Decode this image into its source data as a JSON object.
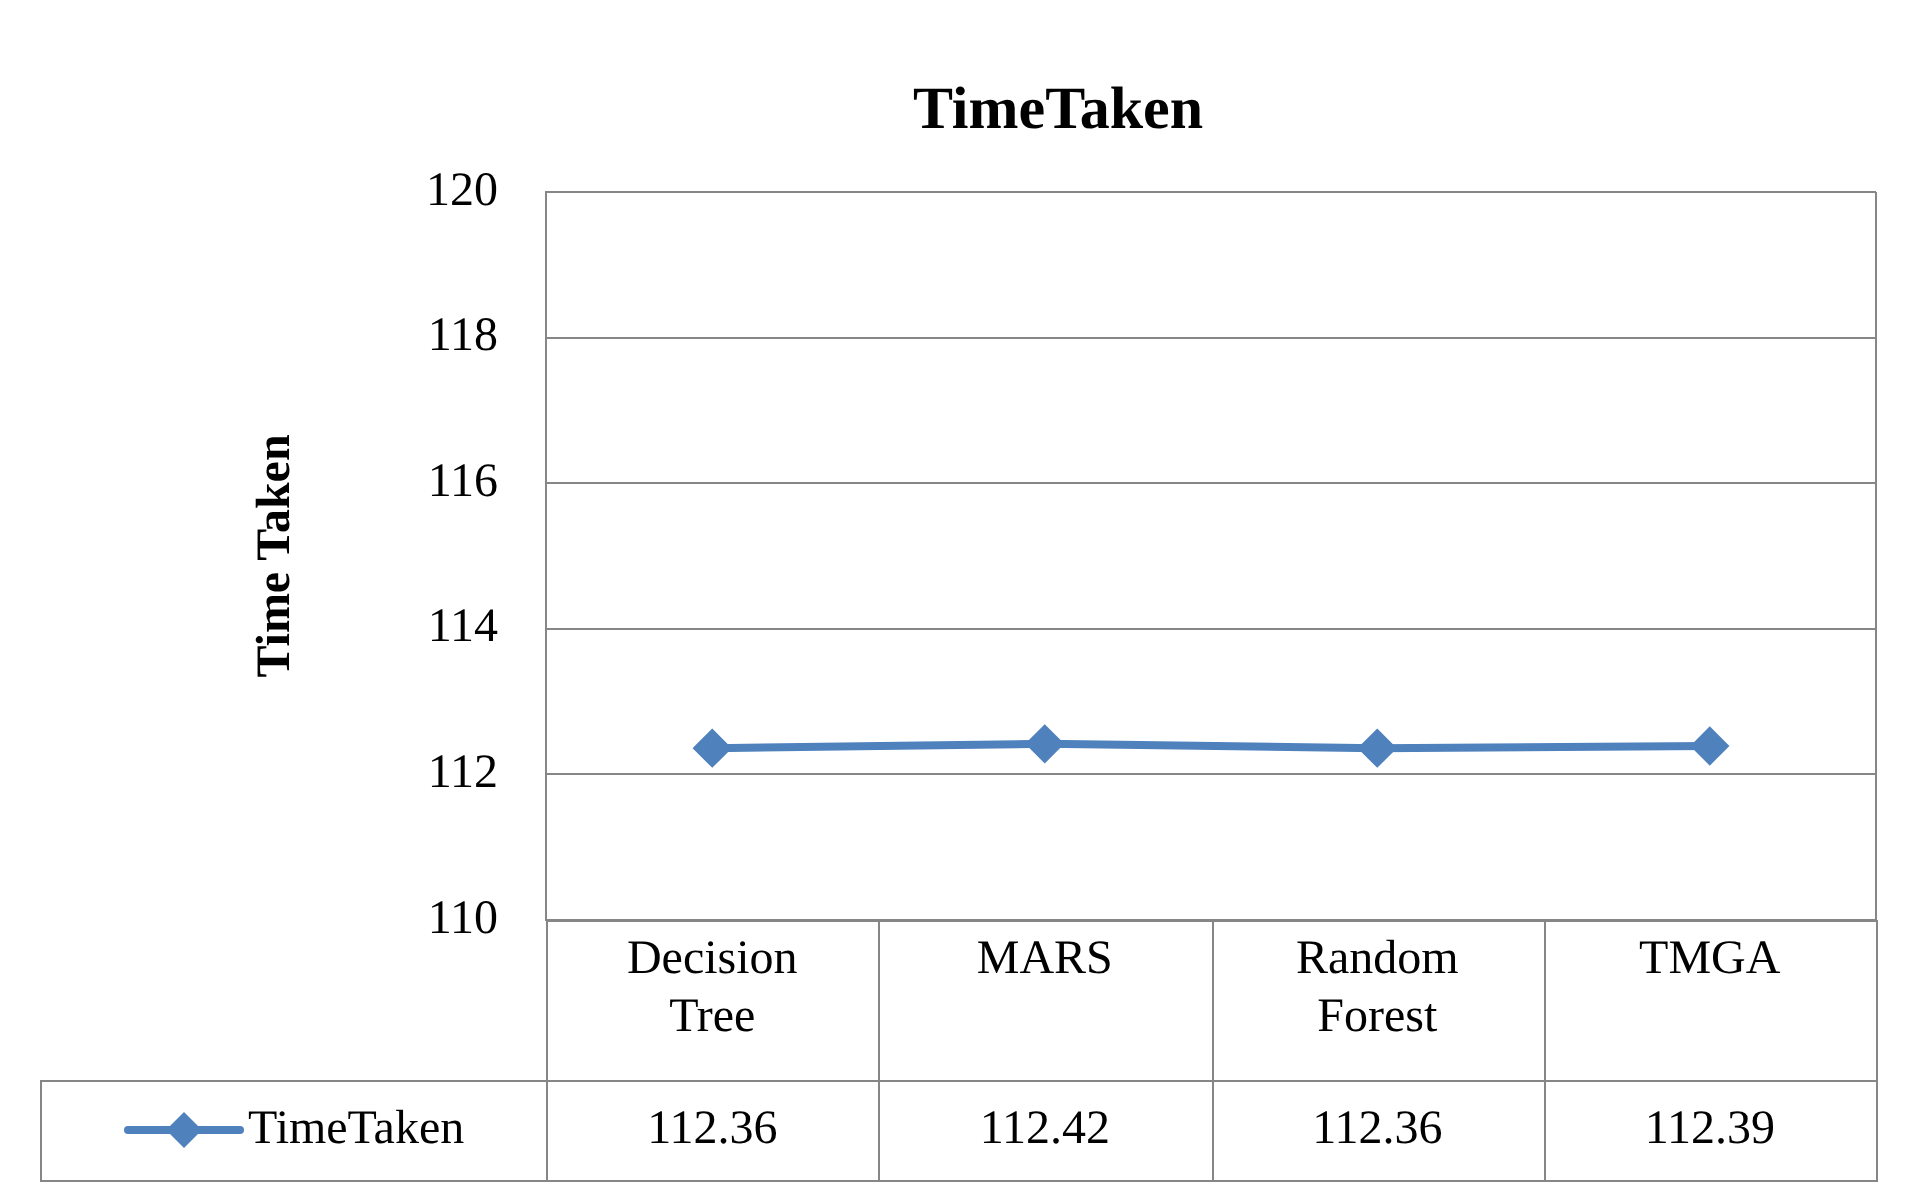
{
  "chart_data": {
    "type": "line",
    "title": "TimeTaken",
    "ylabel": "Time Taken",
    "categories": [
      "Decision Tree",
      "MARS",
      "Random Forest",
      "TMGA"
    ],
    "series": [
      {
        "name": "TimeTaken",
        "color": "#4f81bd",
        "values": [
          112.36,
          112.42,
          112.36,
          112.39
        ]
      }
    ],
    "ylim": [
      110,
      120
    ],
    "yticks": [
      110,
      112,
      114,
      116,
      118,
      120
    ],
    "grid": "y",
    "legend": "bottom",
    "marker": "diamond",
    "data_labels": true
  }
}
